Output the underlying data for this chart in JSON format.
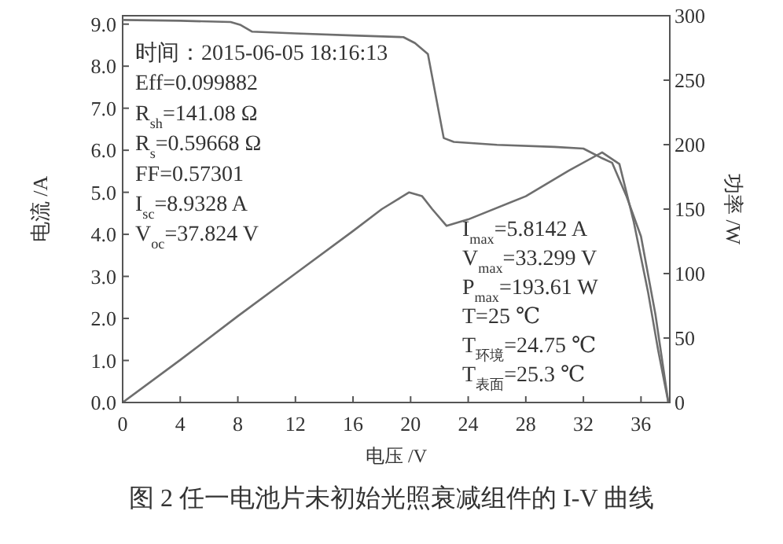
{
  "chart_data": {
    "type": "line",
    "xlabel": "电压 /V",
    "ylabel": "电流 /A",
    "y2label": "功率 /W",
    "x": [
      0,
      4,
      7.5,
      8.2,
      9,
      12,
      16,
      19.5,
      20.3,
      21.2,
      22.3,
      23,
      26,
      30,
      32,
      33.3,
      34,
      35,
      36,
      37,
      37.9
    ],
    "series": [
      {
        "color": "#6e6e6e",
        "values": [
          9.1,
          9.08,
          9.05,
          8.98,
          8.82,
          8.78,
          8.73,
          8.69,
          8.55,
          8.29,
          6.29,
          6.2,
          6.13,
          6.08,
          6.04,
          5.81,
          5.7,
          4.9,
          3.95,
          2.1,
          0
        ]
      },
      {
        "color": "#6e6e6e",
        "axis": "y2",
        "x": [
          0,
          4,
          8,
          12,
          16,
          18,
          19.9,
          20.8,
          21.5,
          22.5,
          24,
          28,
          31,
          33.3,
          34.5,
          35.5,
          36.5,
          37.2,
          37.9
        ],
        "values": [
          0,
          33,
          67,
          100,
          133,
          150,
          163,
          160,
          150,
          137,
          142,
          160,
          180,
          194,
          185,
          140,
          85,
          40,
          0
        ]
      }
    ],
    "xlim": [
      0,
      38
    ],
    "xticks": [
      0,
      4,
      8,
      12,
      16,
      20,
      24,
      28,
      32,
      36
    ],
    "ylim": [
      0,
      9.2
    ],
    "yticks": [
      {
        "value": 0,
        "label": "0.0"
      },
      {
        "value": 1,
        "label": "1.0"
      },
      {
        "value": 2,
        "label": "2.0"
      },
      {
        "value": 3,
        "label": "3.0"
      },
      {
        "value": 4,
        "label": "4.0"
      },
      {
        "value": 5,
        "label": "5.0"
      },
      {
        "value": 6,
        "label": "6.0"
      },
      {
        "value": 7,
        "label": "7.0"
      },
      {
        "value": 8,
        "label": "8.0"
      },
      {
        "value": 9,
        "label": "9.0"
      }
    ],
    "y2lim": [
      0,
      300
    ],
    "y2ticks": [
      0,
      50,
      100,
      150,
      200,
      250,
      300
    ],
    "grid": false,
    "line_style": "solid",
    "annotations": [
      "时间：2015-06-05 18:16:13",
      "Eff=0.099882",
      "R$_{sh}$=141.08 Ω",
      "R$_{s}$=0.59668 Ω",
      "FF=0.57301",
      "I$_{sc}$=8.9328 A",
      "V$_{oc}$=37.824 V",
      "I$_{max}$=5.8142 A",
      "V$_{max}$=33.299 V",
      "P$_{max}$=193.61 W",
      "T=25 ℃",
      "T$_{环境}$=24.75 ℃",
      "T$_{表面}$=25.3 ℃",
      "图 2 任一电池片未初始光照衰减组件的 I-V 曲线"
    ]
  }
}
